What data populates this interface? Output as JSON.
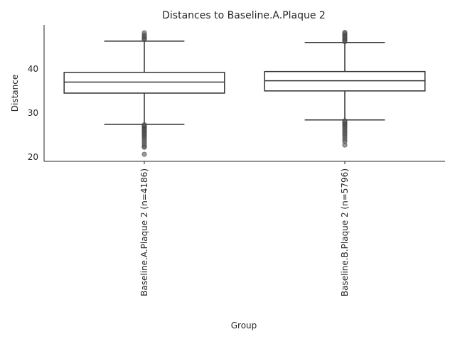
{
  "chart_data": {
    "type": "box",
    "title": "Distances to Baseline.A.Plaque 2",
    "xlabel": "Group",
    "ylabel": "Distance",
    "ylim": [
      19,
      50
    ],
    "yticks": [
      20,
      30,
      40
    ],
    "grid": false,
    "categories": [
      "Baseline.A.Plaque 2 (n=4186)",
      "Baseline.B.Plaque 2 (n=5796)"
    ],
    "boxes": [
      {
        "q1": 34.5,
        "median": 37.0,
        "q3": 39.2,
        "whisker_low": 27.4,
        "whisker_high": 46.3,
        "fliers": [
          20.6,
          22.2,
          22.5,
          23.0,
          23.5,
          24.0,
          24.4,
          24.8,
          25.1,
          25.4,
          25.7,
          26.0,
          26.3,
          26.6,
          26.9,
          27.1,
          27.3,
          46.7,
          47.0,
          47.3,
          47.7,
          48.2
        ]
      },
      {
        "q1": 35.0,
        "median": 37.3,
        "q3": 39.4,
        "whisker_low": 28.4,
        "whisker_high": 46.0,
        "fliers": [
          22.7,
          23.5,
          24.0,
          24.5,
          25.0,
          25.4,
          25.8,
          26.2,
          26.6,
          27.0,
          27.3,
          27.6,
          27.9,
          28.2,
          46.2,
          46.5,
          46.8,
          47.1,
          47.4,
          47.7,
          48.0,
          48.3
        ]
      }
    ]
  }
}
